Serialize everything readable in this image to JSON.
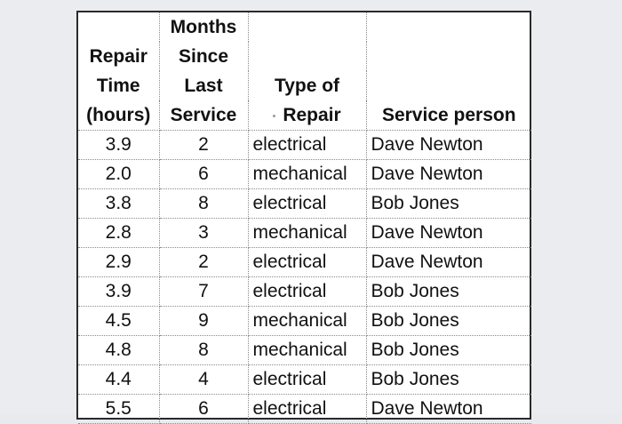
{
  "table": {
    "header": {
      "col1": [
        "",
        "Repair",
        "Time",
        "(hours)"
      ],
      "col2": [
        "Months",
        "Since",
        "Last",
        "Service"
      ],
      "col3": [
        "",
        "",
        "Type of",
        "Repair"
      ],
      "col4": [
        "",
        "",
        "",
        "Service person"
      ]
    },
    "rows": [
      {
        "time": "3.9",
        "months": "2",
        "type": "electrical",
        "person": "Dave Newton"
      },
      {
        "time": "2.0",
        "months": "6",
        "type": "mechanical",
        "person": "Dave Newton"
      },
      {
        "time": "3.8",
        "months": "8",
        "type": "electrical",
        "person": "Bob Jones"
      },
      {
        "time": "2.8",
        "months": "3",
        "type": "mechanical",
        "person": "Dave Newton"
      },
      {
        "time": "2.9",
        "months": "2",
        "type": "electrical",
        "person": "Dave Newton"
      },
      {
        "time": "3.9",
        "months": "7",
        "type": "electrical",
        "person": "Bob Jones"
      },
      {
        "time": "4.5",
        "months": "9",
        "type": "mechanical",
        "person": "Bob Jones"
      },
      {
        "time": "4.8",
        "months": "8",
        "type": "mechanical",
        "person": "Bob Jones"
      },
      {
        "time": "4.4",
        "months": "4",
        "type": "electrical",
        "person": "Bob Jones"
      },
      {
        "time": "5.5",
        "months": "6",
        "type": "electrical",
        "person": "Dave Newton"
      }
    ]
  }
}
